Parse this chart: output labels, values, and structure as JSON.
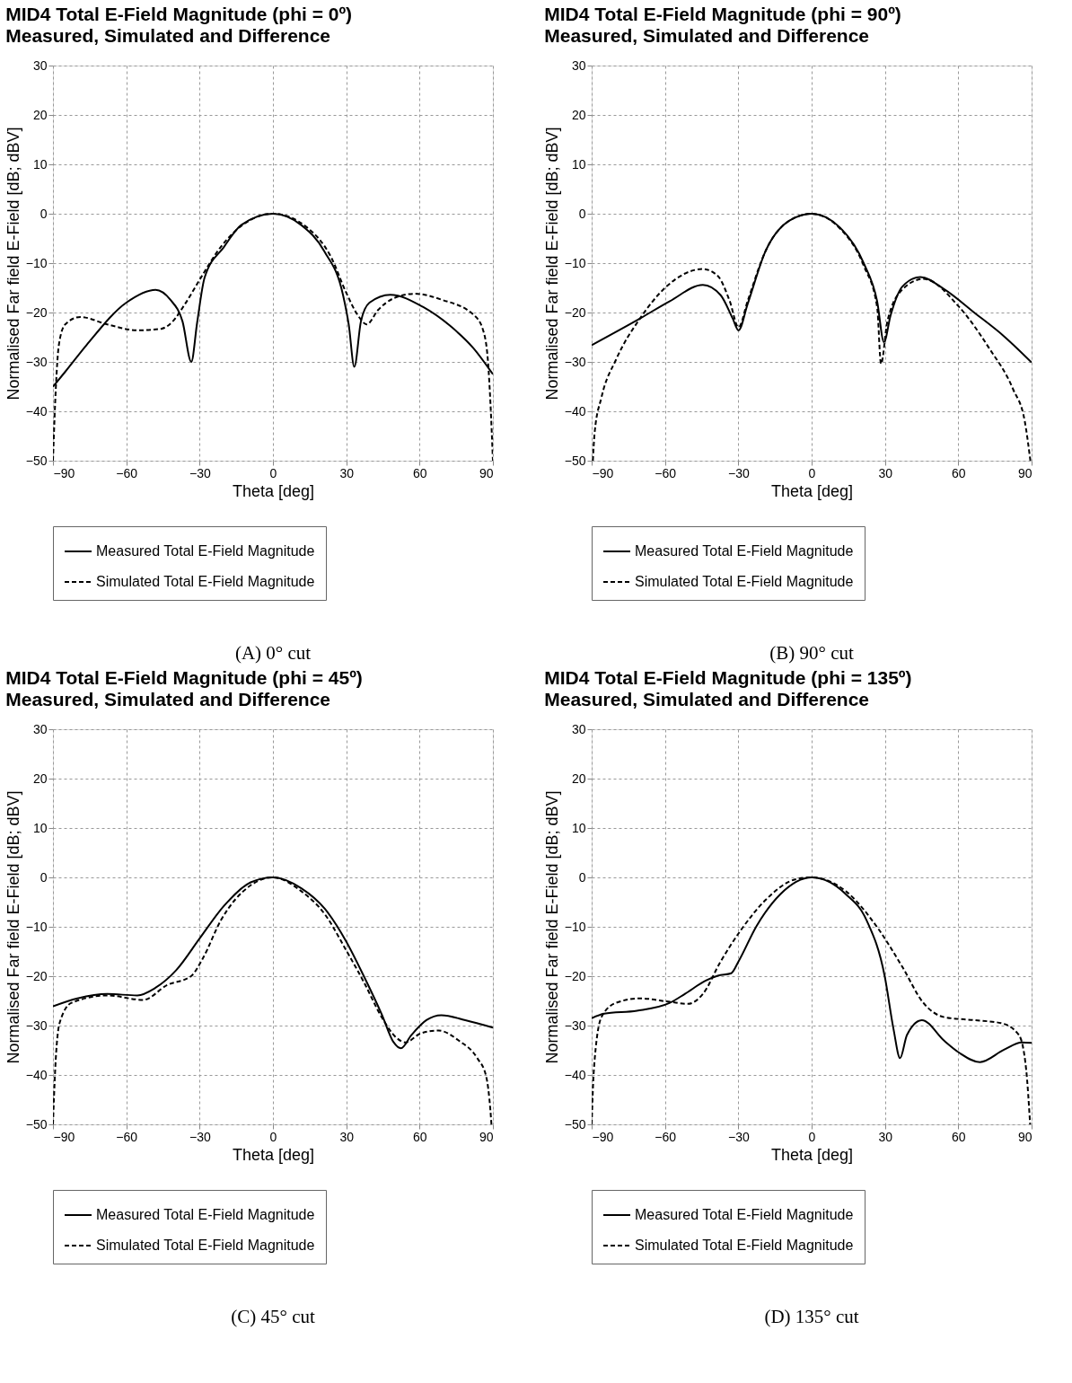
{
  "chart_data": [
    {
      "type": "line",
      "title": "MID4 Total E-Field Magnitude (phi = 0º)",
      "subtitle": "Measured, Simulated and Difference",
      "xlabel": "Theta [deg]",
      "ylabel": "Normalised Far field E-Field [dB; dBV]",
      "xlim": [
        -90,
        90
      ],
      "ylim": [
        -50,
        30
      ],
      "xticks": [
        -90,
        -60,
        -30,
        0,
        30,
        60,
        90
      ],
      "yticks": [
        -50,
        -40,
        -30,
        -20,
        -10,
        0,
        10,
        20,
        30
      ],
      "grid": true,
      "legend": "bottom",
      "annotations": [
        "(A) 0° cut"
      ],
      "series": [
        {
          "name": "Measured Total E-Field Magnitude",
          "color": "#000000",
          "line_style": "solid",
          "x": [
            -90,
            -85,
            -76.3,
            -60,
            -48,
            -42,
            -37,
            -33.4,
            -31,
            -28,
            -20,
            -13,
            0,
            11.6,
            21,
            28.7,
            31,
            33.3,
            36,
            39.5,
            48,
            61.5,
            72.5,
            82,
            90
          ],
          "values": [
            -35,
            -32,
            -26.6,
            -18,
            -15.4,
            -17.4,
            -21.8,
            -30,
            -22,
            -13,
            -6.7,
            -2.3,
            0,
            -2.3,
            -7.6,
            -16.5,
            -22.4,
            -31,
            -21.8,
            -18,
            -16.4,
            -18.9,
            -22.7,
            -27.2,
            -32.5
          ]
        },
        {
          "name": "Simulated Total E-Field Magnitude",
          "color": "#000000",
          "line_style": "dashed",
          "x": [
            -90,
            -88.8,
            -87.6,
            -85,
            -78.8,
            -67.8,
            -55.6,
            -45.8,
            -41,
            -36,
            -28.7,
            -21.3,
            0,
            14,
            23.8,
            29.9,
            34.8,
            38.4,
            43,
            49.5,
            58,
            69,
            82.4,
            86,
            88,
            89,
            90
          ],
          "values": [
            -50,
            -35,
            -26.6,
            -22.4,
            -20.9,
            -22.4,
            -23.6,
            -23.3,
            -21.8,
            -18.3,
            -12.3,
            -6.7,
            0,
            -2.8,
            -8.8,
            -15.9,
            -20.6,
            -22.4,
            -19.5,
            -17.1,
            -16.2,
            -17.4,
            -20.6,
            -23.6,
            -30,
            -38.4,
            -50
          ]
        }
      ]
    },
    {
      "type": "line",
      "title": "MID4 Total E-Field Magnitude (phi = 90º)",
      "subtitle": "Measured, Simulated and Difference",
      "xlabel": "Theta [deg]",
      "ylabel": "Normalised Far field E-Field [dB; dBV]",
      "xlim": [
        -90,
        90
      ],
      "ylim": [
        -50,
        30
      ],
      "xticks": [
        -90,
        -60,
        -30,
        0,
        30,
        60,
        90
      ],
      "yticks": [
        -50,
        -40,
        -30,
        -20,
        -10,
        0,
        10,
        20,
        30
      ],
      "grid": true,
      "legend": "bottom",
      "annotations": [
        "(B) 90° cut"
      ],
      "series": [
        {
          "name": "Measured Total E-Field Magnitude",
          "color": "#000000",
          "line_style": "solid",
          "x": [
            -90,
            -70.2,
            -58,
            -44.5,
            -37.2,
            -32.3,
            -29.9,
            -26.2,
            -18.9,
            -9.1,
            0,
            11.6,
            21.3,
            26.8,
            29.6,
            32.3,
            37.2,
            44.5,
            54.3,
            66.5,
            78.7,
            90
          ],
          "values": [
            -26.6,
            -21.2,
            -17.7,
            -14.4,
            -16.5,
            -21.2,
            -23.6,
            -18.3,
            -7.6,
            -1.4,
            0,
            -2.8,
            -10,
            -17.7,
            -26,
            -20.6,
            -14.7,
            -12.8,
            -15.3,
            -20,
            -24.8,
            -30.1
          ]
        },
        {
          "name": "Simulated Total E-Field Magnitude",
          "color": "#000000",
          "line_style": "dashed",
          "x": [
            -89.5,
            -88.8,
            -86,
            -80,
            -70.2,
            -59.3,
            -44.5,
            -38.4,
            -33.5,
            -29.9,
            -26.2,
            -18.9,
            -9.1,
            0,
            11.6,
            21.3,
            26.8,
            28.4,
            31,
            37.2,
            45.7,
            60.4,
            72.6,
            82.4,
            87.2,
            89.5
          ],
          "values": [
            -50,
            -44.4,
            -37.2,
            -29.5,
            -21.2,
            -14.7,
            -11.2,
            -12.6,
            -17.7,
            -23,
            -17.7,
            -7.6,
            -1.4,
            0,
            -3,
            -10.5,
            -18.9,
            -30.4,
            -21.8,
            -15.3,
            -13.2,
            -18.9,
            -27.2,
            -35.5,
            -42,
            -50
          ]
        }
      ]
    },
    {
      "type": "line",
      "title": "MID4 Total E-Field Magnitude (phi = 45º)",
      "subtitle": "Measured, Simulated and Difference",
      "xlabel": "Theta [deg]",
      "ylabel": "Normalised Far field E-Field [dB; dBV]",
      "xlim": [
        -90,
        90
      ],
      "ylim": [
        -50,
        30
      ],
      "xticks": [
        -90,
        -60,
        -30,
        0,
        30,
        60,
        90
      ],
      "yticks": [
        -50,
        -40,
        -30,
        -20,
        -10,
        0,
        10,
        20,
        30
      ],
      "grid": true,
      "legend": "bottom",
      "annotations": [
        "(C) 45° cut"
      ],
      "series": [
        {
          "name": "Measured Total E-Field Magnitude",
          "color": "#000000",
          "line_style": "solid",
          "x": [
            -90,
            -80,
            -67.7,
            -55.5,
            -48.2,
            -39.6,
            -29.9,
            -20.1,
            -9.1,
            0,
            11.6,
            21.3,
            29.9,
            37.2,
            44.5,
            49.4,
            52.4,
            56.7,
            62.8,
            68.9,
            78.7,
            90
          ],
          "values": [
            -26.1,
            -24.5,
            -23.6,
            -23.9,
            -22.4,
            -18.8,
            -12.3,
            -5.8,
            -1,
            0,
            -2.2,
            -6.4,
            -12.9,
            -20,
            -27.7,
            -33.4,
            -34.6,
            -31.9,
            -28.9,
            -27.9,
            -28.9,
            -30.4
          ]
        },
        {
          "name": "Simulated Total E-Field Magnitude",
          "color": "#000000",
          "line_style": "dashed",
          "x": [
            -90,
            -89.1,
            -87.3,
            -82.4,
            -67.7,
            -53.1,
            -43.3,
            -33.5,
            -28.7,
            -21.3,
            -9.1,
            0,
            11.6,
            21.3,
            29.9,
            37.2,
            44.5,
            50.6,
            54.3,
            60.4,
            67.7,
            76.2,
            83.6,
            87.2,
            89,
            89.4
          ],
          "values": [
            -50,
            -39,
            -29.5,
            -25.4,
            -23.9,
            -24.8,
            -21.8,
            -20,
            -16.4,
            -8.7,
            -1.6,
            0,
            -2.8,
            -7.5,
            -14.7,
            -21.2,
            -28.3,
            -32.5,
            -33.4,
            -31.6,
            -31,
            -33.1,
            -36.6,
            -40.2,
            -47.3,
            -50
          ]
        }
      ]
    },
    {
      "type": "line",
      "title": "MID4 Total E-Field Magnitude (phi = 135º)",
      "subtitle": "Measured, Simulated and Difference",
      "xlabel": "Theta [deg]",
      "ylabel": "Normalised Far field E-Field [dB; dBV]",
      "xlim": [
        -90,
        90
      ],
      "ylim": [
        -50,
        30
      ],
      "xticks": [
        -90,
        -60,
        -30,
        0,
        30,
        60,
        90
      ],
      "yticks": [
        -50,
        -40,
        -30,
        -20,
        -10,
        0,
        10,
        20,
        30
      ],
      "grid": true,
      "legend": "bottom",
      "annotations": [
        "(D) 135° cut"
      ],
      "series": [
        {
          "name": "Measured Total E-Field Magnitude",
          "color": "#000000",
          "line_style": "solid",
          "x": [
            -90,
            -84.9,
            -71.5,
            -58,
            -51.9,
            -43.3,
            -38.4,
            -32.9,
            -29.9,
            -22.6,
            -12.8,
            0,
            14,
            22.5,
            29.9,
            33.5,
            36.2,
            39,
            45.1,
            54.3,
            60.4,
            68.9,
            78.7,
            86,
            90
          ],
          "values": [
            -28.5,
            -27.6,
            -27,
            -25.4,
            -23.6,
            -20.9,
            -19.9,
            -19.4,
            -17,
            -9.9,
            -3.4,
            0,
            -3.4,
            -8.7,
            -20,
            -30.7,
            -36.6,
            -31.9,
            -28.9,
            -33.1,
            -35.5,
            -37.4,
            -34.9,
            -33.4,
            -33.5
          ]
        },
        {
          "name": "Simulated Total E-Field Magnitude",
          "color": "#000000",
          "line_style": "dashed",
          "x": [
            -90,
            -89.1,
            -86,
            -80,
            -70.2,
            -58,
            -50.6,
            -44.5,
            -37.2,
            -28.7,
            -18.9,
            -6.7,
            0,
            14,
            27.4,
            37.2,
            45.7,
            54.3,
            66.5,
            77.5,
            84.8,
            87.8,
            89.4
          ],
          "values": [
            -50,
            -39,
            -28.3,
            -25.4,
            -24.5,
            -25.2,
            -25.6,
            -23.6,
            -17,
            -10.5,
            -4.6,
            -0.4,
            0,
            -2.8,
            -10.5,
            -18.2,
            -25.4,
            -28.3,
            -28.9,
            -29.5,
            -31.9,
            -39,
            -50
          ]
        }
      ]
    }
  ]
}
